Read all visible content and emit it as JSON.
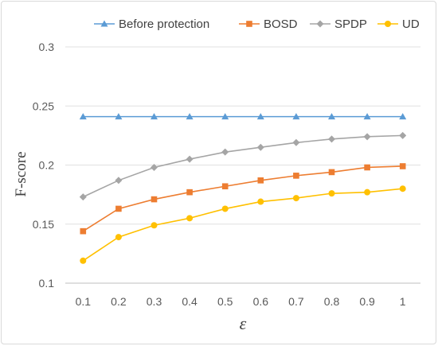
{
  "chart_data": {
    "type": "line",
    "xlabel": "ε",
    "ylabel": "F-score",
    "categories": [
      "0.1",
      "0.2",
      "0.3",
      "0.4",
      "0.5",
      "0.6",
      "0.7",
      "0.8",
      "0.9",
      "1"
    ],
    "ylim": [
      0.1,
      0.3
    ],
    "yticks": [
      "0.1",
      "0.15",
      "0.2",
      "0.25",
      "0.3"
    ],
    "grid": "horizontal",
    "legend_position": "top",
    "series": [
      {
        "name": "Before protection",
        "marker": "triangle",
        "color": "#5b9bd5",
        "values": [
          0.241,
          0.241,
          0.241,
          0.241,
          0.241,
          0.241,
          0.241,
          0.241,
          0.241,
          0.241
        ]
      },
      {
        "name": "BOSD",
        "marker": "square",
        "color": "#ed7d31",
        "values": [
          0.144,
          0.163,
          0.171,
          0.177,
          0.182,
          0.187,
          0.191,
          0.194,
          0.198,
          0.199
        ]
      },
      {
        "name": "SPDP",
        "marker": "diamond",
        "color": "#a5a5a5",
        "values": [
          0.173,
          0.187,
          0.198,
          0.205,
          0.211,
          0.215,
          0.219,
          0.222,
          0.224,
          0.225
        ]
      },
      {
        "name": "UD",
        "marker": "circle",
        "color": "#ffc000",
        "values": [
          0.119,
          0.139,
          0.149,
          0.155,
          0.163,
          0.169,
          0.172,
          0.176,
          0.177,
          0.18
        ]
      }
    ]
  }
}
